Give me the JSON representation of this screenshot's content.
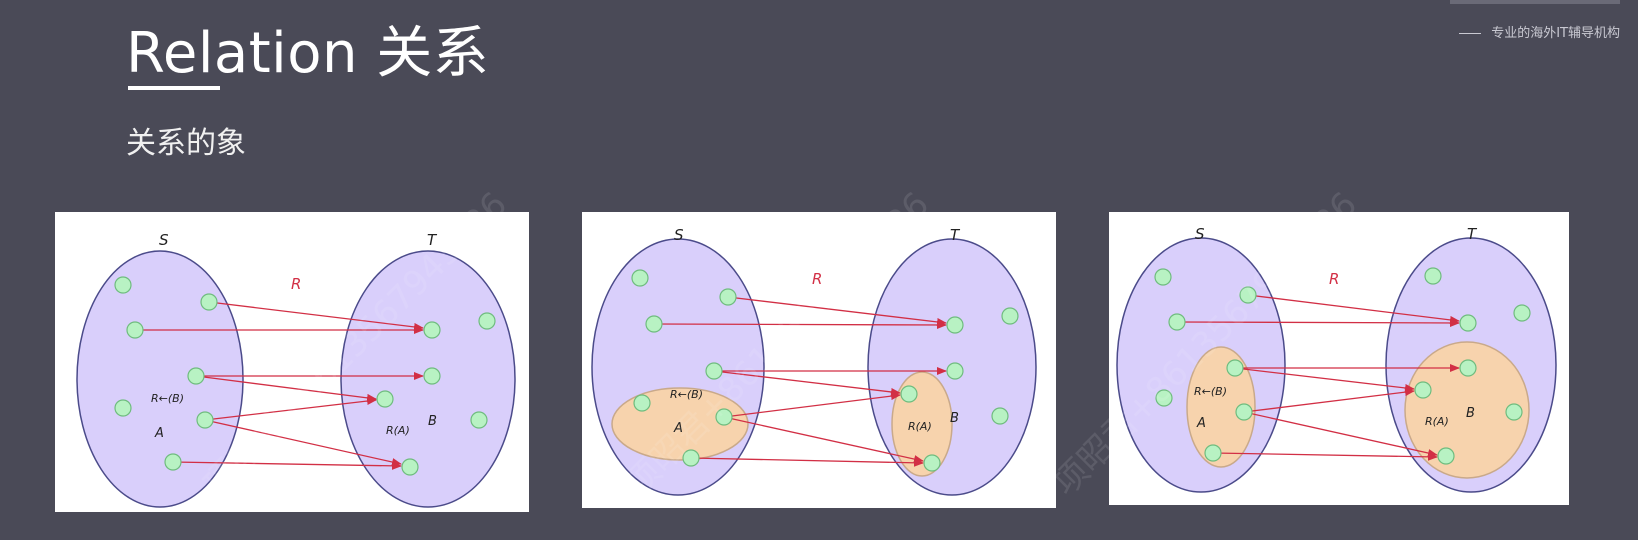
{
  "header": {
    "title": "Relation 关系",
    "subtitle": "关系的象"
  },
  "brand": {
    "tagline": "专业的海外IT辅导机构"
  },
  "watermark": {
    "text": "项昭君+8613567943726"
  },
  "colors": {
    "background": "#4a4a57",
    "ellipse_fill": "#d9cffb",
    "ellipse_stroke": "#4b4b8a",
    "highlight_fill": "#f7d3ad",
    "highlight_stroke": "#c9a98a",
    "point_fill": "#b8f2c3",
    "point_stroke": "#6ebc7e",
    "arrow": "#d22f45",
    "relation_label": "#d22f45"
  },
  "diagrams": [
    {
      "labels": {
        "S": "S",
        "T": "T",
        "R": "R",
        "preimage": "R←(B)",
        "A": "A",
        "image": "R(A)",
        "B": "B"
      },
      "highlight": "none"
    },
    {
      "labels": {
        "S": "S",
        "T": "T",
        "R": "R",
        "preimage": "R←(B)",
        "A": "A",
        "image": "R(A)",
        "B": "B"
      },
      "highlight": "A-and-R(A)"
    },
    {
      "labels": {
        "S": "S",
        "T": "T",
        "R": "R",
        "preimage": "R←(B)",
        "A": "A",
        "image": "R(A)",
        "B": "B"
      },
      "highlight": "preimage-and-B"
    }
  ]
}
